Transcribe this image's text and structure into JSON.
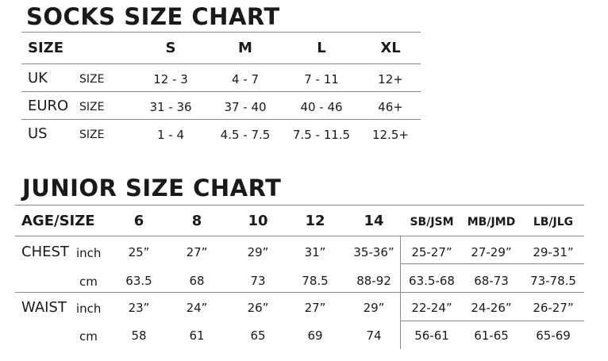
{
  "socks": {
    "title": "SOCKS SIZE CHART",
    "header": [
      "SIZE",
      "S",
      "M",
      "L",
      "XL"
    ],
    "rows": [
      {
        "label": "UK",
        "sub": "SIZE",
        "values": [
          "12 - 3",
          "4 - 7",
          "7 - 11",
          "12+"
        ]
      },
      {
        "label": "EURO",
        "sub": "SIZE",
        "values": [
          "31 - 36",
          "37 - 40",
          "40 - 46",
          "46+"
        ]
      },
      {
        "label": "US",
        "sub": "SIZE",
        "values": [
          "1 - 4",
          "4.5 - 7.5",
          "7.5 - 11.5",
          "12.5+"
        ]
      }
    ]
  },
  "junior": {
    "title": "JUNIOR SIZE CHART",
    "header": [
      "AGE/SIZE",
      "6",
      "8",
      "10",
      "12",
      "14",
      "SB/JSM",
      "MB/JMD",
      "LB/JLG"
    ],
    "rows": [
      {
        "label": "CHEST",
        "unit": "inch",
        "values": [
          "25”",
          "27”",
          "29”",
          "31”",
          "35-36”",
          "25-27”",
          "27-29”",
          "29-31”"
        ]
      },
      {
        "label": "",
        "unit": "cm",
        "values": [
          "63.5",
          "68",
          "73",
          "78.5",
          "88-92",
          "63.5-68",
          "68-73",
          "73-78.5"
        ]
      },
      {
        "label": "WAIST",
        "unit": "inch",
        "values": [
          "23”",
          "24”",
          "26”",
          "27”",
          "29”",
          "22-24”",
          "24-26”",
          "26-27”"
        ]
      },
      {
        "label": "",
        "unit": "cm",
        "values": [
          "58",
          "61",
          "65",
          "69",
          "74",
          "56-61",
          "61-65",
          "65-69"
        ]
      }
    ]
  }
}
